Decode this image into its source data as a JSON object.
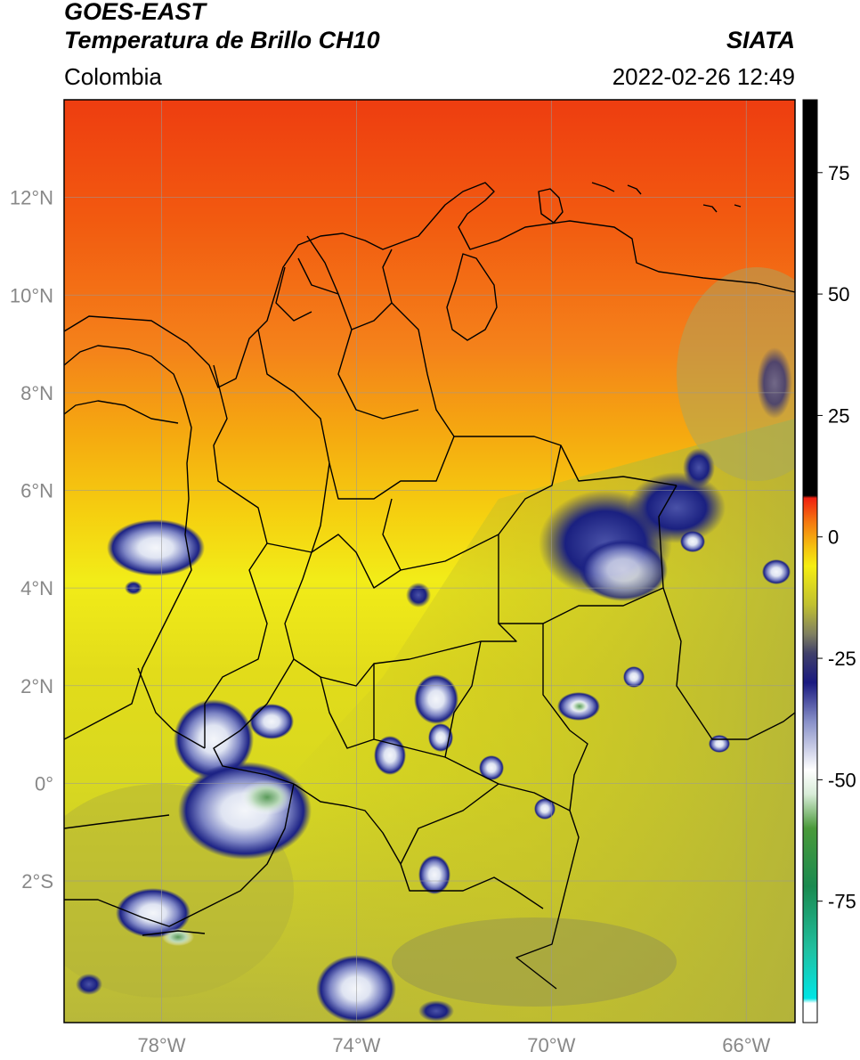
{
  "header": {
    "title_top": "GOES-EAST",
    "title_main": "Temperatura de Brillo CH10",
    "region": "Colombia",
    "organization": "SIATA",
    "datetime": "2022-02-26 12:49"
  },
  "map": {
    "lon_min": -80,
    "lon_max": -65,
    "lat_min": -4.9,
    "lat_max": 14.0,
    "lat_ticks": [
      {
        "value": 12,
        "label": "12°N"
      },
      {
        "value": 10,
        "label": "10°N"
      },
      {
        "value": 8,
        "label": "8°N"
      },
      {
        "value": 6,
        "label": "6°N"
      },
      {
        "value": 4,
        "label": "4°N"
      },
      {
        "value": 2,
        "label": "2°N"
      },
      {
        "value": 0,
        "label": "0°"
      },
      {
        "value": -2,
        "label": "2°S"
      }
    ],
    "lon_ticks": [
      {
        "value": -78,
        "label": "78°W"
      },
      {
        "value": -74,
        "label": "74°W"
      },
      {
        "value": -70,
        "label": "70°W"
      },
      {
        "value": -66,
        "label": "66°W"
      }
    ],
    "gridlines": true,
    "colors": {
      "warm_north": "#f04a10",
      "orange": "#f8a010",
      "yellow": "#f2e81a",
      "olive": "#bcbc28",
      "dark_olive": "#8a8a50",
      "cloud_blue": "#1a237e",
      "cloud_white": "#e8ecf5",
      "cloud_green": "#5a9a5a",
      "border": "#000000",
      "grid": "#999999"
    }
  },
  "colorbar": {
    "vmin": -100,
    "vmax": 90,
    "ticks": [
      {
        "value": 75,
        "label": "75"
      },
      {
        "value": 50,
        "label": "50"
      },
      {
        "value": 25,
        "label": "25"
      },
      {
        "value": 0,
        "label": "0"
      },
      {
        "value": -25,
        "label": "-25"
      },
      {
        "value": -50,
        "label": "-50"
      },
      {
        "value": -75,
        "label": "-75"
      }
    ],
    "stops": [
      {
        "value": -100,
        "color": "#ffffff"
      },
      {
        "value": -96,
        "color": "#ffffff"
      },
      {
        "value": -95,
        "color": "#00e5e5"
      },
      {
        "value": -85,
        "color": "#20c0a0"
      },
      {
        "value": -72,
        "color": "#1a8a50"
      },
      {
        "value": -60,
        "color": "#4a9a3a"
      },
      {
        "value": -53,
        "color": "#d8ecd8"
      },
      {
        "value": -48,
        "color": "#ffffff"
      },
      {
        "value": -38,
        "color": "#8890c8"
      },
      {
        "value": -30,
        "color": "#1a1a80"
      },
      {
        "value": -24,
        "color": "#40406a"
      },
      {
        "value": -20,
        "color": "#808060"
      },
      {
        "value": -14,
        "color": "#c0c030"
      },
      {
        "value": -6,
        "color": "#f5ee10"
      },
      {
        "value": -2,
        "color": "#f5c010"
      },
      {
        "value": 3,
        "color": "#f57a10"
      },
      {
        "value": 8,
        "color": "#f02010"
      },
      {
        "value": 8.5,
        "color": "#000000"
      },
      {
        "value": 90,
        "color": "#000000"
      }
    ]
  }
}
